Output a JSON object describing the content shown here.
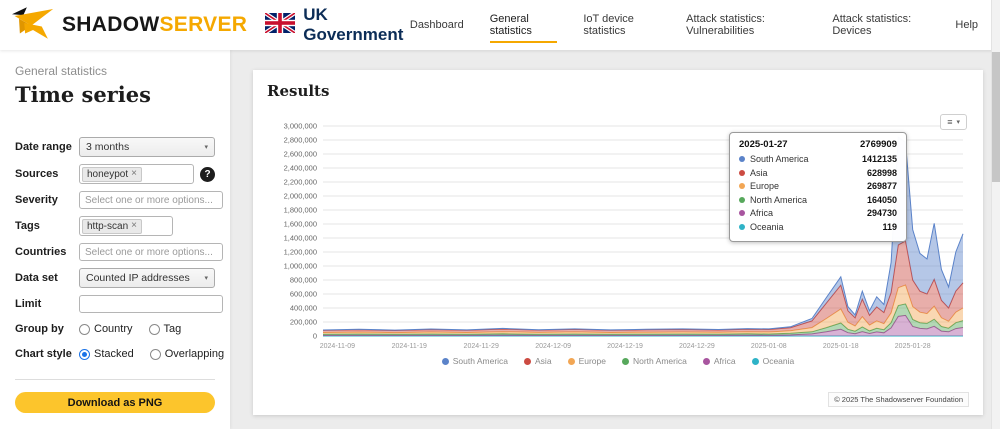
{
  "icons": {
    "caret": "▾",
    "question": "?",
    "menu": "≡",
    "close": "×"
  },
  "header": {
    "brand": {
      "shadow": "SHADOW",
      "server": "SERVER"
    },
    "gov_label": "UK Government",
    "nav": [
      {
        "label": "Dashboard",
        "active": false
      },
      {
        "label": "General statistics",
        "active": true
      },
      {
        "label": "IoT device statistics",
        "active": false
      },
      {
        "label": "Attack statistics: Vulnerabilities",
        "active": false
      },
      {
        "label": "Attack statistics: Devices",
        "active": false
      },
      {
        "label": "Help",
        "active": false
      }
    ]
  },
  "sidebar": {
    "breadcrumb": "General statistics",
    "title": "Time series",
    "fields": {
      "date_range": {
        "label": "Date range",
        "value": "3 months"
      },
      "sources": {
        "label": "Sources",
        "chips": [
          "honeypot"
        ]
      },
      "severity": {
        "label": "Severity",
        "placeholder": "Select one or more options..."
      },
      "tags": {
        "label": "Tags",
        "chips": [
          "http-scan"
        ]
      },
      "countries": {
        "label": "Countries",
        "placeholder": "Select one or more options..."
      },
      "data_set": {
        "label": "Data set",
        "value": "Counted IP addresses"
      },
      "limit": {
        "label": "Limit",
        "value": ""
      },
      "group_by": {
        "label": "Group by",
        "options": [
          {
            "label": "Country",
            "checked": false
          },
          {
            "label": "Tag",
            "checked": false
          }
        ]
      },
      "chart_style": {
        "label": "Chart style",
        "options": [
          {
            "label": "Stacked",
            "checked": true
          },
          {
            "label": "Overlapping",
            "checked": false
          }
        ]
      }
    },
    "download_button": "Download as PNG"
  },
  "main": {
    "title": "Results",
    "copyright": "© 2025 The Shadowserver Foundation"
  },
  "tooltip": {
    "date": "2025-01-27",
    "total": "2769909",
    "rows": [
      {
        "name": "South America",
        "value": "1412135"
      },
      {
        "name": "Asia",
        "value": "628998"
      },
      {
        "name": "Europe",
        "value": "269877"
      },
      {
        "name": "North America",
        "value": "164050"
      },
      {
        "name": "Africa",
        "value": "294730"
      },
      {
        "name": "Oceania",
        "value": "119"
      }
    ]
  },
  "chart_data": {
    "type": "area",
    "stacked": true,
    "title": "",
    "xlabel": "",
    "ylabel": "",
    "ylim": [
      0,
      3000000
    ],
    "y_step": 200000,
    "grid": true,
    "legend_position": "bottom",
    "x_range": [
      "2024-11-07",
      "2025-02-04"
    ],
    "x_ticks": [
      "2024-11-09",
      "2024-11-19",
      "2024-11-29",
      "2024-12-09",
      "2024-12-19",
      "2024-12-29",
      "2025-01-08",
      "2025-01-18",
      "2025-01-28"
    ],
    "x": [
      "2024-11-07",
      "2024-11-12",
      "2024-11-17",
      "2024-11-22",
      "2024-11-27",
      "2024-12-02",
      "2024-12-07",
      "2024-12-12",
      "2024-12-17",
      "2024-12-22",
      "2024-12-27",
      "2025-01-01",
      "2025-01-05",
      "2025-01-08",
      "2025-01-11",
      "2025-01-14",
      "2025-01-16",
      "2025-01-18",
      "2025-01-19",
      "2025-01-20",
      "2025-01-21",
      "2025-01-22",
      "2025-01-23",
      "2025-01-24",
      "2025-01-25",
      "2025-01-26",
      "2025-01-27",
      "2025-01-28",
      "2025-01-29",
      "2025-01-30",
      "2025-01-31",
      "2025-02-01",
      "2025-02-02",
      "2025-02-03",
      "2025-02-04"
    ],
    "series": [
      {
        "name": "South America",
        "color": "#5b83c9",
        "values": [
          6000,
          7000,
          5000,
          8000,
          6000,
          9000,
          6000,
          8000,
          6000,
          7000,
          8000,
          7000,
          9000,
          8000,
          12000,
          35000,
          80000,
          120000,
          60000,
          42000,
          115000,
          65000,
          145000,
          115000,
          430000,
          1540000,
          1412135,
          720000,
          540000,
          500000,
          800000,
          440000,
          300000,
          560000,
          700000
        ]
      },
      {
        "name": "Asia",
        "color": "#cc4b42",
        "values": [
          30000,
          33000,
          30000,
          35000,
          31000,
          38000,
          32000,
          36000,
          31000,
          34000,
          36000,
          33000,
          37000,
          36000,
          45000,
          95000,
          220000,
          340000,
          165000,
          115000,
          250000,
          140000,
          200000,
          160000,
          290000,
          610000,
          628998,
          380000,
          300000,
          280000,
          385000,
          250000,
          190000,
          300000,
          360000
        ]
      },
      {
        "name": "Europe",
        "color": "#f2a654",
        "values": [
          25000,
          27000,
          24000,
          28000,
          25000,
          30000,
          26000,
          29000,
          25000,
          27000,
          28000,
          26000,
          29000,
          28000,
          36000,
          60000,
          130000,
          200000,
          100000,
          75000,
          145000,
          82000,
          105000,
          85000,
          140000,
          255000,
          269877,
          185000,
          150000,
          140000,
          185000,
          125000,
          98000,
          150000,
          180000
        ]
      },
      {
        "name": "North America",
        "color": "#57a85c",
        "values": [
          15000,
          16000,
          15000,
          17000,
          15000,
          18000,
          15000,
          17000,
          15000,
          16000,
          17000,
          16000,
          18000,
          17000,
          22000,
          30000,
          60000,
          90000,
          48000,
          35000,
          68000,
          38000,
          52000,
          44000,
          75000,
          155000,
          164050,
          100000,
          82000,
          78000,
          102000,
          65000,
          52000,
          84000,
          98000
        ]
      },
      {
        "name": "Africa",
        "color": "#a8559f",
        "values": [
          10000,
          12000,
          10000,
          12000,
          10000,
          13000,
          11000,
          12000,
          10000,
          11000,
          12000,
          11000,
          13000,
          12000,
          16000,
          30000,
          60000,
          95000,
          47000,
          33000,
          62000,
          35000,
          58000,
          46000,
          115000,
          280000,
          294730,
          135000,
          108000,
          102000,
          138000,
          70000,
          60000,
          106000,
          122000
        ]
      },
      {
        "name": "Oceania",
        "color": "#2fb3c7",
        "values": [
          100,
          100,
          100,
          100,
          100,
          100,
          100,
          100,
          100,
          100,
          100,
          100,
          100,
          100,
          100,
          100,
          100,
          100,
          100,
          100,
          100,
          100,
          100,
          100,
          100,
          120,
          119,
          100,
          100,
          100,
          100,
          100,
          100,
          100,
          100
        ]
      }
    ]
  }
}
